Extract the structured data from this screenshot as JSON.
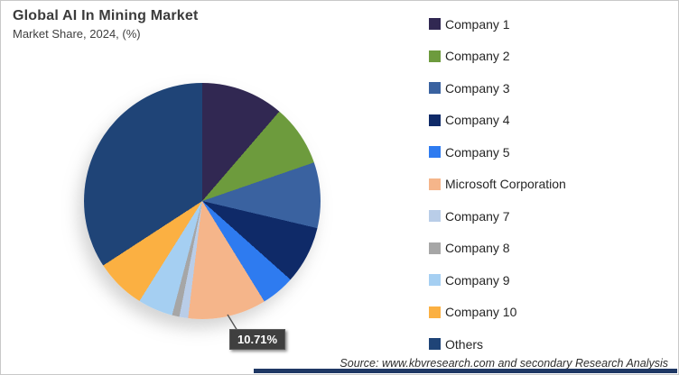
{
  "header": {
    "title": "Global AI In Mining Market",
    "subtitle": "Market Share, 2024, (%)"
  },
  "chart_data": {
    "type": "pie",
    "title": "Global AI In Mining Market",
    "subtitle": "Market Share, 2024, (%)",
    "unit": "%",
    "start_angle_deg": 0,
    "direction": "clockwise",
    "legend_position": "right",
    "series": [
      {
        "name": "Company 1",
        "value": 11.3,
        "color": "#312852"
      },
      {
        "name": "Company 2",
        "value": 8.4,
        "color": "#6d9b3d"
      },
      {
        "name": "Company 3",
        "value": 9.0,
        "color": "#3a62a0"
      },
      {
        "name": "Company 4",
        "value": 7.9,
        "color": "#0f2a68"
      },
      {
        "name": "Company 5",
        "value": 4.6,
        "color": "#2e7bf0"
      },
      {
        "name": "Microsoft Corporation",
        "value": 10.71,
        "color": "#f5b58a"
      },
      {
        "name": "Company 7",
        "value": 1.2,
        "color": "#b9cde8"
      },
      {
        "name": "Company 8",
        "value": 1.0,
        "color": "#a6a6a6"
      },
      {
        "name": "Company 9",
        "value": 4.8,
        "color": "#a5cff2"
      },
      {
        "name": "Company 10",
        "value": 6.9,
        "color": "#fbb042"
      },
      {
        "name": "Others",
        "value": 34.19,
        "color": "#1f4477"
      }
    ],
    "data_labels": [
      {
        "series": "Microsoft Corporation",
        "text": "10.71%"
      }
    ]
  },
  "annotation": {
    "label": "10.71%"
  },
  "footer": {
    "source": "Source: www.kbvresearch.com and secondary Research Analysis"
  },
  "colors": {
    "bottom_bar": "#1f3864",
    "callout_bg": "#3f3f3f",
    "leader_line": "#555555"
  }
}
